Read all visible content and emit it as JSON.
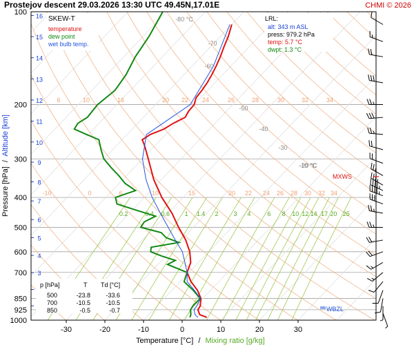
{
  "header": {
    "title": "Prostejov  descent  29.03.2026 13:30 UTC  49.45N,17.01E",
    "credit": "CHMI © 2026"
  },
  "legend": {
    "chart_name": "SKEW-T",
    "items": [
      {
        "label": "temperature",
        "color": "#e01010"
      },
      {
        "label": "dew point",
        "color": "#118811"
      },
      {
        "label": "wet bulb temp.",
        "color": "#2255dd"
      }
    ]
  },
  "lrl_box": {
    "title": "LRL:",
    "lines": [
      {
        "text": "alt: 343 m ASL",
        "color": "#1a3fd6"
      },
      {
        "text": "press: 979.2 hPa",
        "color": "#000000"
      },
      {
        "text": "temp: 5.7 °C",
        "color": "#e01010"
      },
      {
        "text": "dwpt: 1.3 °C",
        "color": "#118811"
      }
    ]
  },
  "table": {
    "headers": [
      "p [hPa]",
      "T",
      "Td [°C]"
    ],
    "rows": [
      [
        "500",
        "-23.8",
        "-33.6"
      ],
      [
        "700",
        "-10.5",
        "-10.5"
      ],
      [
        "850",
        "-0.5",
        "-0.7"
      ]
    ]
  },
  "axis_labels": {
    "x_temperature": "Temperature [°C]",
    "x_separator": "/",
    "x_mixing": "Mixing ratio [g/kg]",
    "y_pressure": "Pressure [hPa]",
    "y_separator": "/",
    "y_altitude": "Altitude [km]"
  },
  "markers": {
    "mxws": "MXWS",
    "wbzl": "WBZL"
  },
  "colors": {
    "temperature": "#e01010",
    "dewpoint": "#118811",
    "wetbulb": "#2255dd",
    "isotherm_label": "#888888",
    "dry_adiabat": "#f0b48a",
    "mixing_ratio": "#a0c850",
    "mixing_label": "#55aa22",
    "altitude_label": "#1a3fd6",
    "pressure_line": "#a0a0a0",
    "credit": "#cc0000"
  },
  "chart_data": {
    "type": "line",
    "subtype": "skew-t log-p",
    "title": "Prostejov  descent  29.03.2026 13:30 UTC  49.45N,17.01E",
    "xlabel": "Temperature [°C]",
    "ylabel": "Pressure [hPa]",
    "secondary_y_label": "Altitude [km]",
    "secondary_x_label": "Mixing ratio [g/kg]",
    "x_ticks": [
      -30,
      -20,
      -10,
      0,
      10,
      20,
      30
    ],
    "y_ticks": [
      100,
      200,
      300,
      400,
      500,
      600,
      700,
      850,
      925,
      1000
    ],
    "altitude_ticks_km": [
      1,
      2,
      3,
      4,
      5,
      6,
      7,
      8,
      9,
      10,
      11,
      12,
      13,
      14,
      15,
      16
    ],
    "xlim_at_surface": [
      -40,
      42
    ],
    "ylim": [
      1000,
      100
    ],
    "in_chart_isotherm_labels": [
      -80,
      -70,
      -60,
      -50,
      -40,
      -30,
      -20,
      -10
    ],
    "in_chart_isotherm_label_suffix": "°C",
    "dry_adiabat_labels": [
      4,
      6,
      8,
      10,
      12,
      14,
      16,
      18,
      20,
      22,
      24,
      26,
      28,
      30,
      32,
      34
    ],
    "mixing_ratio_labels": [
      "0.2",
      "0.4",
      "0.6",
      "1",
      "1.4",
      "2",
      "3",
      "4",
      "6",
      "8",
      "10",
      "12",
      "14",
      "17",
      "20",
      "25"
    ],
    "mixing_ratio_values": [
      0.2,
      0.4,
      0.6,
      1,
      1.4,
      2,
      3,
      4,
      6,
      8,
      10,
      12,
      14,
      17,
      20,
      25
    ],
    "series": [
      {
        "name": "temperature",
        "color": "#e01010",
        "points": [
          [
            979.2,
            5.7
          ],
          [
            960,
            3.2
          ],
          [
            925,
            1.5
          ],
          [
            900,
            1.2
          ],
          [
            850,
            -0.5
          ],
          [
            800,
            -3.4
          ],
          [
            750,
            -7.2
          ],
          [
            700,
            -10.5
          ],
          [
            650,
            -12.0
          ],
          [
            600,
            -14.9
          ],
          [
            550,
            -18.8
          ],
          [
            500,
            -23.8
          ],
          [
            450,
            -29.0
          ],
          [
            400,
            -35.5
          ],
          [
            350,
            -42.0
          ],
          [
            300,
            -48.5
          ],
          [
            270,
            -53.0
          ],
          [
            260,
            -54.8
          ],
          [
            250,
            -54.0
          ],
          [
            240,
            -51.8
          ],
          [
            230,
            -50.8
          ],
          [
            220,
            -49.2
          ],
          [
            210,
            -49.8
          ],
          [
            200,
            -50.0
          ],
          [
            190,
            -51.2
          ],
          [
            180,
            -51.5
          ],
          [
            170,
            -52.0
          ],
          [
            160,
            -52.8
          ],
          [
            150,
            -53.8
          ],
          [
            140,
            -55.0
          ],
          [
            130,
            -56.5
          ],
          [
            120,
            -58.0
          ],
          [
            110,
            -60.0
          ]
        ]
      },
      {
        "name": "dew point",
        "color": "#118811",
        "points": [
          [
            979.2,
            1.3
          ],
          [
            960,
            0.9
          ],
          [
            925,
            -0.4
          ],
          [
            900,
            -0.7
          ],
          [
            850,
            -0.7
          ],
          [
            800,
            -4.5
          ],
          [
            750,
            -9.0
          ],
          [
            700,
            -10.5
          ],
          [
            660,
            -17.5
          ],
          [
            640,
            -16.5
          ],
          [
            620,
            -21.0
          ],
          [
            600,
            -25.0
          ],
          [
            580,
            -26.0
          ],
          [
            560,
            -20.0
          ],
          [
            540,
            -24.5
          ],
          [
            520,
            -27.0
          ],
          [
            500,
            -33.6
          ],
          [
            480,
            -34.0
          ],
          [
            460,
            -32.5
          ],
          [
            440,
            -39.0
          ],
          [
            420,
            -45.5
          ],
          [
            400,
            -47.5
          ],
          [
            380,
            -44.0
          ],
          [
            360,
            -48.5
          ],
          [
            340,
            -52.0
          ],
          [
            320,
            -56.0
          ],
          [
            300,
            -60.0
          ],
          [
            280,
            -63.0
          ],
          [
            260,
            -66.0
          ],
          [
            250,
            -70.5
          ],
          [
            240,
            -75.0
          ],
          [
            230,
            -75.5
          ],
          [
            220,
            -74.5
          ],
          [
            200,
            -75.0
          ],
          [
            180,
            -74.0
          ],
          [
            160,
            -75.0
          ],
          [
            140,
            -77.0
          ],
          [
            120,
            -78.5
          ],
          [
            100,
            -81.0
          ]
        ]
      },
      {
        "name": "wet bulb temp.",
        "color": "#2255dd",
        "points": [
          [
            979.2,
            3.4
          ],
          [
            960,
            2.0
          ],
          [
            925,
            0.5
          ],
          [
            900,
            0.3
          ],
          [
            850,
            -0.6
          ],
          [
            800,
            -4.2
          ],
          [
            750,
            -8.2
          ],
          [
            700,
            -10.5
          ],
          [
            650,
            -13.5
          ],
          [
            600,
            -16.8
          ],
          [
            550,
            -21.5
          ],
          [
            500,
            -26.5
          ],
          [
            450,
            -32.0
          ],
          [
            400,
            -38.0
          ],
          [
            350,
            -44.0
          ],
          [
            300,
            -50.0
          ],
          [
            250,
            -55.0
          ],
          [
            200,
            -51.0
          ],
          [
            150,
            -54.5
          ],
          [
            110,
            -60.5
          ]
        ]
      }
    ],
    "wind_barbs": [
      {
        "p": 110,
        "dir": 300,
        "kt": 10
      },
      {
        "p": 125,
        "dir": 290,
        "kt": 15
      },
      {
        "p": 140,
        "dir": 280,
        "kt": 20
      },
      {
        "p": 170,
        "dir": 280,
        "kt": 30
      },
      {
        "p": 200,
        "dir": 270,
        "kt": 25
      },
      {
        "p": 220,
        "dir": 265,
        "kt": 30
      },
      {
        "p": 250,
        "dir": 275,
        "kt": 25
      },
      {
        "p": 280,
        "dir": 285,
        "kt": 20
      },
      {
        "p": 310,
        "dir": 290,
        "kt": 20
      },
      {
        "p": 340,
        "dir": 300,
        "kt": 25
      },
      {
        "p": 365,
        "dir": 300,
        "kt": 35
      },
      {
        "p": 380,
        "dir": 295,
        "kt": 45
      },
      {
        "p": 395,
        "dir": 290,
        "kt": 50
      },
      {
        "p": 420,
        "dir": 290,
        "kt": 30
      },
      {
        "p": 450,
        "dir": 280,
        "kt": 25
      },
      {
        "p": 500,
        "dir": 270,
        "kt": 25
      },
      {
        "p": 550,
        "dir": 260,
        "kt": 20
      },
      {
        "p": 600,
        "dir": 250,
        "kt": 20
      },
      {
        "p": 650,
        "dir": 240,
        "kt": 15
      },
      {
        "p": 700,
        "dir": 230,
        "kt": 15
      },
      {
        "p": 750,
        "dir": 220,
        "kt": 10
      },
      {
        "p": 800,
        "dir": 200,
        "kt": 10
      },
      {
        "p": 850,
        "dir": 190,
        "kt": 10
      },
      {
        "p": 900,
        "dir": 180,
        "kt": 5
      },
      {
        "p": 950,
        "dir": 160,
        "kt": 5
      }
    ]
  }
}
